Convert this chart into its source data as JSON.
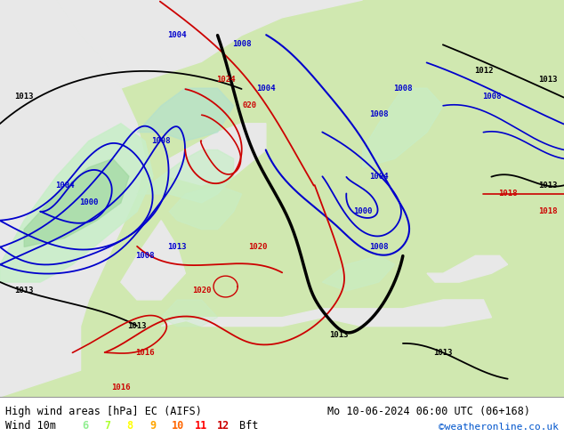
{
  "title_left": "High wind areas [hPa] EC (AIFS)",
  "title_right": "Mo 10-06-2024 06:00 UTC (06+168)",
  "wind_label": "Wind 10m",
  "bft_label": "Bft",
  "copyright": "©weatheronline.co.uk",
  "bft_values": [
    "6",
    "7",
    "8",
    "9",
    "10",
    "11",
    "12"
  ],
  "bft_colors": [
    "#90ee90",
    "#adff2f",
    "#ffff00",
    "#ffa500",
    "#ff6600",
    "#ff0000",
    "#cc0000"
  ],
  "isobar_color_black": "#000000",
  "isobar_color_blue": "#0000cc",
  "isobar_color_red": "#cc0000",
  "land_color": "#d0e8b0",
  "sea_color": "#e8e8e8",
  "wind_green_light": "#c8eec8",
  "wind_green_mid": "#a0d8a0",
  "wind_green_dark": "#78c878",
  "fig_width": 6.34,
  "fig_height": 4.9,
  "dpi": 100
}
